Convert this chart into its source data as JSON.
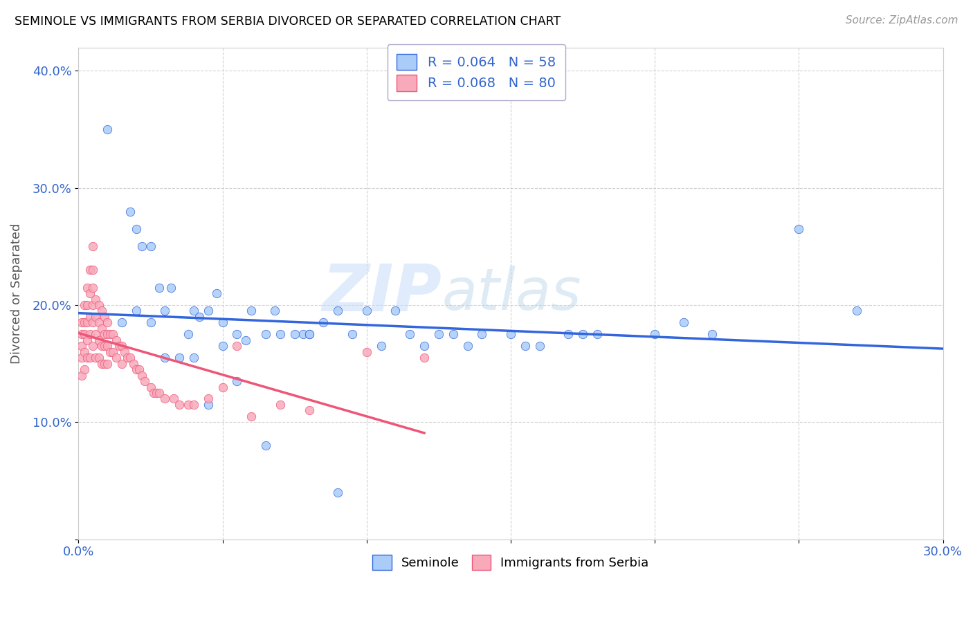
{
  "title": "SEMINOLE VS IMMIGRANTS FROM SERBIA DIVORCED OR SEPARATED CORRELATION CHART",
  "source": "Source: ZipAtlas.com",
  "ylabel": "Divorced or Separated",
  "xlim": [
    0.0,
    0.3
  ],
  "ylim": [
    0.0,
    0.42
  ],
  "xticks": [
    0.0,
    0.05,
    0.1,
    0.15,
    0.2,
    0.25,
    0.3
  ],
  "yticks": [
    0.0,
    0.1,
    0.2,
    0.3,
    0.4
  ],
  "xtick_labels": [
    "0.0%",
    "",
    "",
    "",
    "",
    "",
    "30.0%"
  ],
  "ytick_labels": [
    "",
    "10.0%",
    "20.0%",
    "30.0%",
    "40.0%"
  ],
  "seminole_R": 0.064,
  "seminole_N": 58,
  "serbia_R": 0.068,
  "serbia_N": 80,
  "seminole_color": "#aaccf8",
  "serbia_color": "#f8aabb",
  "seminole_line_color": "#3366dd",
  "serbia_line_color": "#ee5577",
  "seminole_x": [
    0.01,
    0.018,
    0.02,
    0.022,
    0.025,
    0.028,
    0.03,
    0.032,
    0.035,
    0.038,
    0.04,
    0.042,
    0.045,
    0.048,
    0.05,
    0.05,
    0.055,
    0.058,
    0.06,
    0.065,
    0.068,
    0.07,
    0.075,
    0.078,
    0.08,
    0.085,
    0.09,
    0.095,
    0.1,
    0.105,
    0.11,
    0.115,
    0.12,
    0.125,
    0.13,
    0.135,
    0.14,
    0.15,
    0.155,
    0.16,
    0.17,
    0.175,
    0.18,
    0.2,
    0.21,
    0.22,
    0.25,
    0.27,
    0.015,
    0.02,
    0.025,
    0.03,
    0.04,
    0.045,
    0.055,
    0.065,
    0.08,
    0.09
  ],
  "seminole_y": [
    0.35,
    0.28,
    0.265,
    0.25,
    0.25,
    0.215,
    0.195,
    0.215,
    0.155,
    0.175,
    0.195,
    0.19,
    0.195,
    0.21,
    0.185,
    0.165,
    0.175,
    0.17,
    0.195,
    0.175,
    0.195,
    0.175,
    0.175,
    0.175,
    0.175,
    0.185,
    0.195,
    0.175,
    0.195,
    0.165,
    0.195,
    0.175,
    0.165,
    0.175,
    0.175,
    0.165,
    0.175,
    0.175,
    0.165,
    0.165,
    0.175,
    0.175,
    0.175,
    0.175,
    0.185,
    0.175,
    0.265,
    0.195,
    0.185,
    0.195,
    0.185,
    0.155,
    0.155,
    0.115,
    0.135,
    0.08,
    0.175,
    0.04
  ],
  "serbia_x": [
    0.001,
    0.001,
    0.001,
    0.001,
    0.001,
    0.002,
    0.002,
    0.002,
    0.002,
    0.002,
    0.003,
    0.003,
    0.003,
    0.003,
    0.003,
    0.004,
    0.004,
    0.004,
    0.004,
    0.004,
    0.005,
    0.005,
    0.005,
    0.005,
    0.005,
    0.005,
    0.006,
    0.006,
    0.006,
    0.006,
    0.007,
    0.007,
    0.007,
    0.007,
    0.008,
    0.008,
    0.008,
    0.008,
    0.009,
    0.009,
    0.009,
    0.009,
    0.01,
    0.01,
    0.01,
    0.01,
    0.011,
    0.011,
    0.012,
    0.012,
    0.013,
    0.013,
    0.014,
    0.015,
    0.015,
    0.016,
    0.017,
    0.018,
    0.019,
    0.02,
    0.021,
    0.022,
    0.023,
    0.025,
    0.026,
    0.027,
    0.028,
    0.03,
    0.033,
    0.035,
    0.038,
    0.04,
    0.045,
    0.05,
    0.055,
    0.06,
    0.07,
    0.08,
    0.1,
    0.12
  ],
  "serbia_y": [
    0.185,
    0.175,
    0.165,
    0.155,
    0.14,
    0.2,
    0.185,
    0.175,
    0.16,
    0.145,
    0.215,
    0.2,
    0.185,
    0.17,
    0.155,
    0.23,
    0.21,
    0.19,
    0.175,
    0.155,
    0.25,
    0.23,
    0.215,
    0.2,
    0.185,
    0.165,
    0.205,
    0.19,
    0.175,
    0.155,
    0.2,
    0.185,
    0.17,
    0.155,
    0.195,
    0.18,
    0.165,
    0.15,
    0.19,
    0.175,
    0.165,
    0.15,
    0.185,
    0.175,
    0.165,
    0.15,
    0.175,
    0.16,
    0.175,
    0.16,
    0.17,
    0.155,
    0.165,
    0.165,
    0.15,
    0.16,
    0.155,
    0.155,
    0.15,
    0.145,
    0.145,
    0.14,
    0.135,
    0.13,
    0.125,
    0.125,
    0.125,
    0.12,
    0.12,
    0.115,
    0.115,
    0.115,
    0.12,
    0.13,
    0.165,
    0.105,
    0.115,
    0.11,
    0.16,
    0.155
  ]
}
